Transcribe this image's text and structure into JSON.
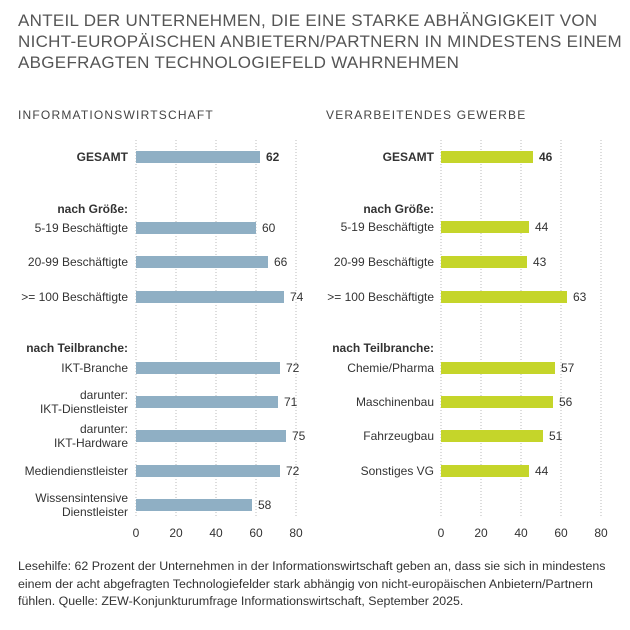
{
  "title": "ANTEIL DER UNTERNEHMEN, DIE EINE STARKE ABHÄNGIGKEIT VON NICHT-EUROPÄISCHEN ANBIETERN/PARTNERN IN MINDESTENS EINEM ABGEFRAGTEN TECHNOLOGIEFELD WAHRNEHMEN",
  "footnote": "Lesehilfe: 62 Prozent der Unternehmen in der Informationswirtschaft geben an, dass sie sich in mindestens einem der acht abgefragten Technologiefelder stark abhängig von nicht-europäischen Anbietern/Partnern fühlen. Quelle: ZEW-Konjunkturumfrage Informationswirtschaft, September 2025.",
  "chart_data": [
    {
      "type": "bar",
      "orientation": "horizontal",
      "title": "INFORMATIONSWIRTSCHAFT",
      "color": "#8fafc4",
      "xlim": [
        0,
        80
      ],
      "xticks": [
        "0",
        "20",
        "40",
        "60",
        "80"
      ],
      "grid": true,
      "rows": [
        {
          "label": [
            "GESAMT"
          ],
          "value": 62,
          "bold": true
        },
        {
          "label": [
            "nach Größe:"
          ],
          "heading": true
        },
        {
          "label": [
            "5-19 Beschäftigte"
          ],
          "value": 60
        },
        {
          "label": [
            "20-99 Beschäftigte"
          ],
          "value": 66
        },
        {
          "label": [
            ">= 100 Beschäftigte"
          ],
          "value": 74
        },
        {
          "label": [
            "nach Teilbranche:"
          ],
          "heading": true
        },
        {
          "label": [
            "IKT-Branche"
          ],
          "value": 72
        },
        {
          "label": [
            "darunter:",
            "IKT-Dienstleister"
          ],
          "value": 71
        },
        {
          "label": [
            "darunter:",
            "IKT-Hardware"
          ],
          "value": 75
        },
        {
          "label": [
            "Mediendienstleister"
          ],
          "value": 72
        },
        {
          "label": [
            "Wissensintensive",
            "Dienstleister"
          ],
          "value": 58
        }
      ]
    },
    {
      "type": "bar",
      "orientation": "horizontal",
      "title": "VERARBEITENDES GEWERBE",
      "color": "#c5d52a",
      "xlim": [
        0,
        80
      ],
      "xticks": [
        "0",
        "20",
        "40",
        "60",
        "80"
      ],
      "grid": true,
      "rows": [
        {
          "label": [
            "GESAMT"
          ],
          "value": 46,
          "bold": true
        },
        {
          "label": [
            "nach Größe:"
          ],
          "heading": true
        },
        {
          "label": [
            "5-19 Beschäftigte"
          ],
          "value": 44
        },
        {
          "label": [
            "20-99 Beschäftigte"
          ],
          "value": 43
        },
        {
          "label": [
            ">= 100 Beschäftigte"
          ],
          "value": 63
        },
        {
          "label": [
            "nach Teilbranche:"
          ],
          "heading": true
        },
        {
          "label": [
            "Chemie/Pharma"
          ],
          "value": 57
        },
        {
          "label": [
            "Maschinenbau"
          ],
          "value": 56
        },
        {
          "label": [
            "Fahrzeugbau"
          ],
          "value": 51
        },
        {
          "label": [
            "Sonstiges VG"
          ],
          "value": 44
        }
      ]
    }
  ]
}
